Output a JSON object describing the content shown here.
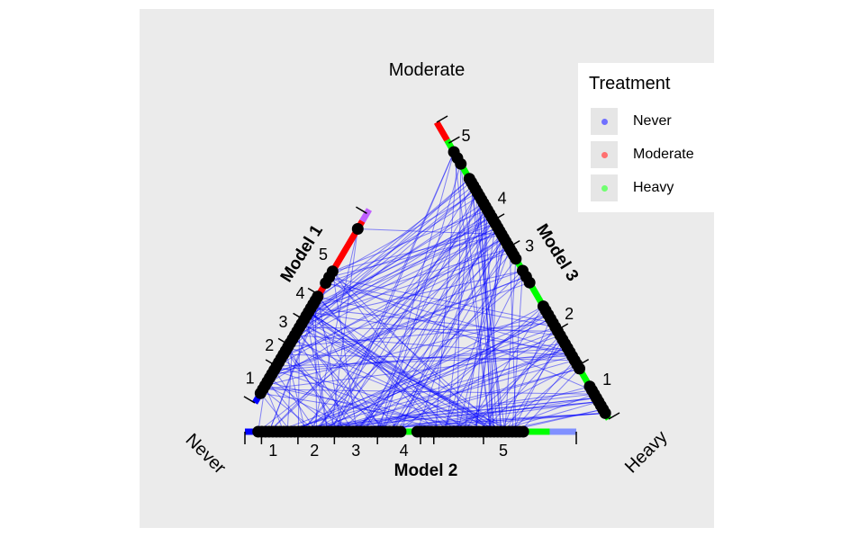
{
  "chart_data": {
    "type": "scatter",
    "subtype": "ternary-parallel-coordinates",
    "vertex_labels": {
      "top": "Moderate",
      "left": "Never",
      "right": "Heavy"
    },
    "axes": [
      {
        "name": "Model 1",
        "side": "left",
        "tick_labels": [
          "1",
          "2",
          "3",
          "4",
          "5"
        ]
      },
      {
        "name": "Model 2",
        "side": "bottom",
        "tick_labels": [
          "1",
          "2",
          "3",
          "4",
          "5"
        ]
      },
      {
        "name": "Model 3",
        "side": "right",
        "tick_labels": [
          "1",
          "2",
          "3",
          "4",
          "5"
        ]
      }
    ],
    "legend": {
      "title": "Treatment",
      "position": "top-right",
      "items": [
        {
          "label": "Never",
          "color": "#7070ff"
        },
        {
          "label": "Moderate",
          "color": "#ff7070"
        },
        {
          "label": "Heavy",
          "color": "#70ff70"
        }
      ]
    },
    "colors": {
      "panel_background": "#ebebeb",
      "lines": "#0000ff",
      "points": "#000000",
      "bar_never": "#0000ff",
      "bar_moderate": "#ff0000",
      "bar_heavy": "#00ff00"
    },
    "grid": false
  }
}
